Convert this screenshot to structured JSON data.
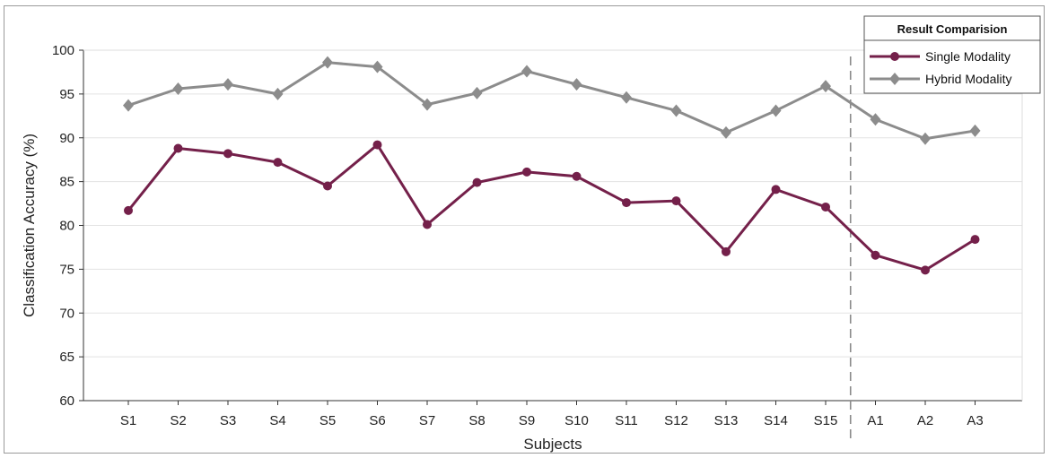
{
  "chart_data": {
    "type": "line",
    "title": "",
    "xlabel": "Subjects",
    "ylabel": "Classification Accuracy (%)",
    "ylim": [
      60,
      100
    ],
    "yticks": [
      60,
      65,
      70,
      75,
      80,
      85,
      90,
      95,
      100
    ],
    "categories": [
      "S1",
      "S2",
      "S3",
      "S4",
      "S5",
      "S6",
      "S7",
      "S8",
      "S9",
      "S10",
      "S11",
      "S12",
      "S13",
      "S14",
      "S15",
      "A1",
      "A2",
      "A3"
    ],
    "grid": "horizontal",
    "divider_after": "S15",
    "legend": {
      "title": "Result Comparision",
      "placement": "top-right"
    },
    "series": [
      {
        "name": "Single Modality",
        "color": "#74204a",
        "marker": "circle",
        "values": [
          81.7,
          88.8,
          88.2,
          87.2,
          84.5,
          89.2,
          80.1,
          84.9,
          86.1,
          85.6,
          82.6,
          82.8,
          77.0,
          84.1,
          82.1,
          76.6,
          74.9,
          78.4
        ]
      },
      {
        "name": "Hybrid Modality",
        "color": "#8c8c8c",
        "marker": "diamond",
        "values": [
          93.7,
          95.6,
          96.1,
          95.0,
          98.6,
          98.1,
          93.8,
          95.1,
          97.6,
          96.1,
          94.6,
          93.1,
          90.6,
          93.1,
          95.9,
          92.1,
          89.9,
          90.8
        ]
      }
    ]
  }
}
